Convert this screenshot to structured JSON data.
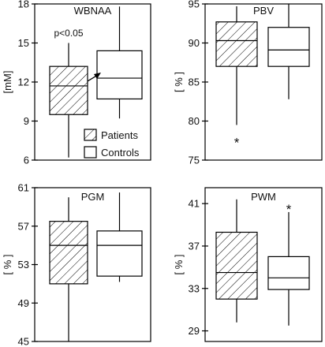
{
  "chart_data": [
    {
      "type": "box",
      "title": "WBNAA",
      "ylabel": "[mM]",
      "ylim": [
        6,
        18
      ],
      "yticks": [
        6,
        9,
        12,
        15,
        18
      ],
      "categories": [
        "Patients",
        "Controls"
      ],
      "boxes": [
        {
          "name": "Patients",
          "pattern": "hatch",
          "whisker_low": 6.2,
          "q1": 9.5,
          "median": 11.7,
          "q3": 13.2,
          "whisker_high": 15.0,
          "outliers": []
        },
        {
          "name": "Controls",
          "pattern": "none",
          "whisker_low": 9.2,
          "q1": 10.7,
          "median": 12.3,
          "q3": 14.4,
          "whisker_high": 17.8,
          "outliers": []
        }
      ],
      "annotations": [
        {
          "text": "p<0.05"
        }
      ],
      "arrow": true,
      "legend": {
        "position": "bottom-right",
        "items": [
          {
            "label": "Patients",
            "pattern": "hatch"
          },
          {
            "label": "Controls",
            "pattern": "none"
          }
        ]
      }
    },
    {
      "type": "box",
      "title": "PBV",
      "ylabel": "[ % ]",
      "ylim": [
        75,
        95
      ],
      "yticks": [
        75,
        80,
        85,
        90,
        95
      ],
      "categories": [
        "Patients",
        "Controls"
      ],
      "boxes": [
        {
          "name": "Patients",
          "pattern": "hatch",
          "whisker_low": 79.5,
          "q1": 87.0,
          "median": 90.3,
          "q3": 92.7,
          "whisker_high": 94.7,
          "outliers": [
            77.6
          ]
        },
        {
          "name": "Controls",
          "pattern": "none",
          "whisker_low": 82.8,
          "q1": 87.0,
          "median": 89.1,
          "q3": 92.0,
          "whisker_high": 95.0,
          "outliers": []
        }
      ]
    },
    {
      "type": "box",
      "title": "PGM",
      "ylabel": "[ % ]",
      "ylim": [
        45,
        61
      ],
      "yticks": [
        45,
        49,
        53,
        57,
        61
      ],
      "categories": [
        "Patients",
        "Controls"
      ],
      "boxes": [
        {
          "name": "Patients",
          "pattern": "hatch",
          "whisker_low": 45.0,
          "q1": 51.0,
          "median": 55.0,
          "q3": 57.5,
          "whisker_high": 60.0,
          "outliers": []
        },
        {
          "name": "Controls",
          "pattern": "none",
          "whisker_low": 51.2,
          "q1": 51.8,
          "median": 55.0,
          "q3": 56.5,
          "whisker_high": 60.5,
          "outliers": []
        }
      ]
    },
    {
      "type": "box",
      "title": "PWM",
      "ylabel": "[ % ]",
      "ylim": [
        28,
        42.5
      ],
      "yticks": [
        29,
        33,
        37,
        41
      ],
      "categories": [
        "Patients",
        "Controls"
      ],
      "boxes": [
        {
          "name": "Patients",
          "pattern": "hatch",
          "whisker_low": 29.8,
          "q1": 32.0,
          "median": 34.5,
          "q3": 38.3,
          "whisker_high": 41.4,
          "outliers": []
        },
        {
          "name": "Controls",
          "pattern": "none",
          "whisker_low": 29.5,
          "q1": 32.9,
          "median": 34.0,
          "q3": 36.0,
          "whisker_high": 40.2,
          "outliers": [
            40.7
          ]
        }
      ]
    }
  ]
}
